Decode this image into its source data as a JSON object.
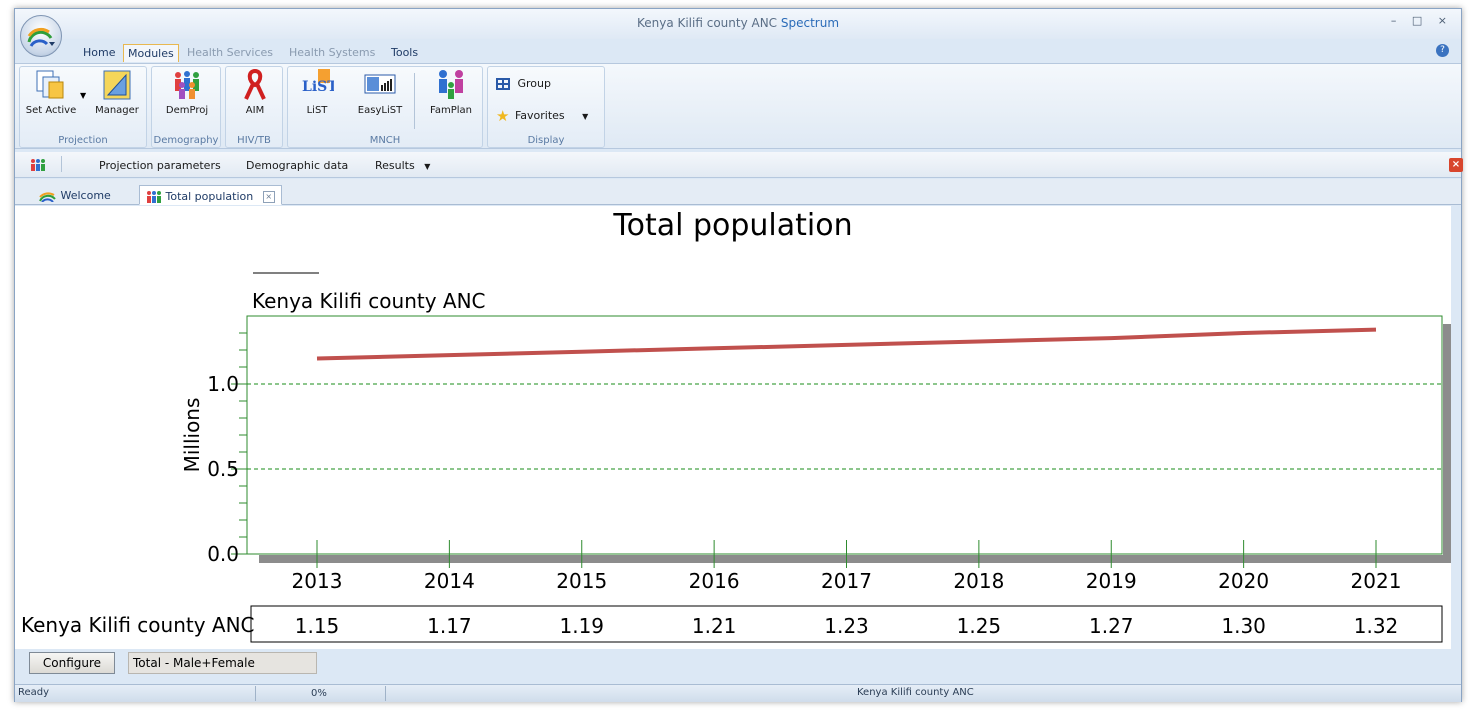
{
  "window": {
    "title_main": "Kenya Kilifi county ANC",
    "title_accent": "Spectrum",
    "controls": "– □ ×"
  },
  "ribbon": {
    "tabs": [
      {
        "label": "Home",
        "state": "normal"
      },
      {
        "label": "Modules",
        "state": "active"
      },
      {
        "label": "Health Services",
        "state": "dim"
      },
      {
        "label": "Health Systems",
        "state": "dim"
      },
      {
        "label": "Tools",
        "state": "normal"
      }
    ],
    "help": "?",
    "groups": {
      "projection": {
        "label": "Projection",
        "set_active": "Set Active",
        "manager": "Manager"
      },
      "demography": {
        "label": "Demography",
        "demproj": "DemProj"
      },
      "hivtb": {
        "label": "HIV/TB",
        "aim": "AIM"
      },
      "mnch": {
        "label": "MNCH",
        "list": "LiST",
        "easylist": "EasyLiST",
        "famplan": "FamPlan"
      },
      "display": {
        "label": "Display",
        "group": "Group",
        "favorites": "Favorites"
      }
    }
  },
  "toolbar2": {
    "projection_parameters": "Projection parameters",
    "demographic_data": "Demographic data",
    "results": "Results"
  },
  "doc_tabs": [
    {
      "label": "Welcome"
    },
    {
      "label": "Total population"
    }
  ],
  "chart_data": {
    "type": "line",
    "title": "Total population",
    "subtitle": "Kenya Kilifi county ANC",
    "ylabel": "Millions",
    "xlabel": "",
    "ylim": [
      0,
      1.4
    ],
    "yticks": [
      0.0,
      0.5,
      1.0
    ],
    "ytick_labels": [
      "0.0",
      "0.5",
      "1.0"
    ],
    "grid": "horizontal dashed at 0.5 and 1.0",
    "categories": [
      "2013",
      "2014",
      "2015",
      "2016",
      "2017",
      "2018",
      "2019",
      "2020",
      "2021"
    ],
    "series": [
      {
        "name": "Kenya Kilifi county ANC",
        "values": [
          1.15,
          1.17,
          1.19,
          1.21,
          1.23,
          1.25,
          1.27,
          1.3,
          1.32
        ],
        "color": "#c0504d"
      }
    ],
    "table": {
      "row_label": "Kenya Kilifi county ANC",
      "values": [
        "1.15",
        "1.17",
        "1.19",
        "1.21",
        "1.23",
        "1.25",
        "1.27",
        "1.30",
        "1.32"
      ]
    },
    "colors": {
      "axis": "#2e8b2e",
      "grid": "#1a8c1a",
      "shadow": "#8c8c8c"
    }
  },
  "bottom": {
    "configure": "Configure",
    "selection": "Total - Male+Female"
  },
  "status": {
    "state": "Ready",
    "progress": "0%",
    "projection": "Kenya Kilifi county ANC"
  }
}
